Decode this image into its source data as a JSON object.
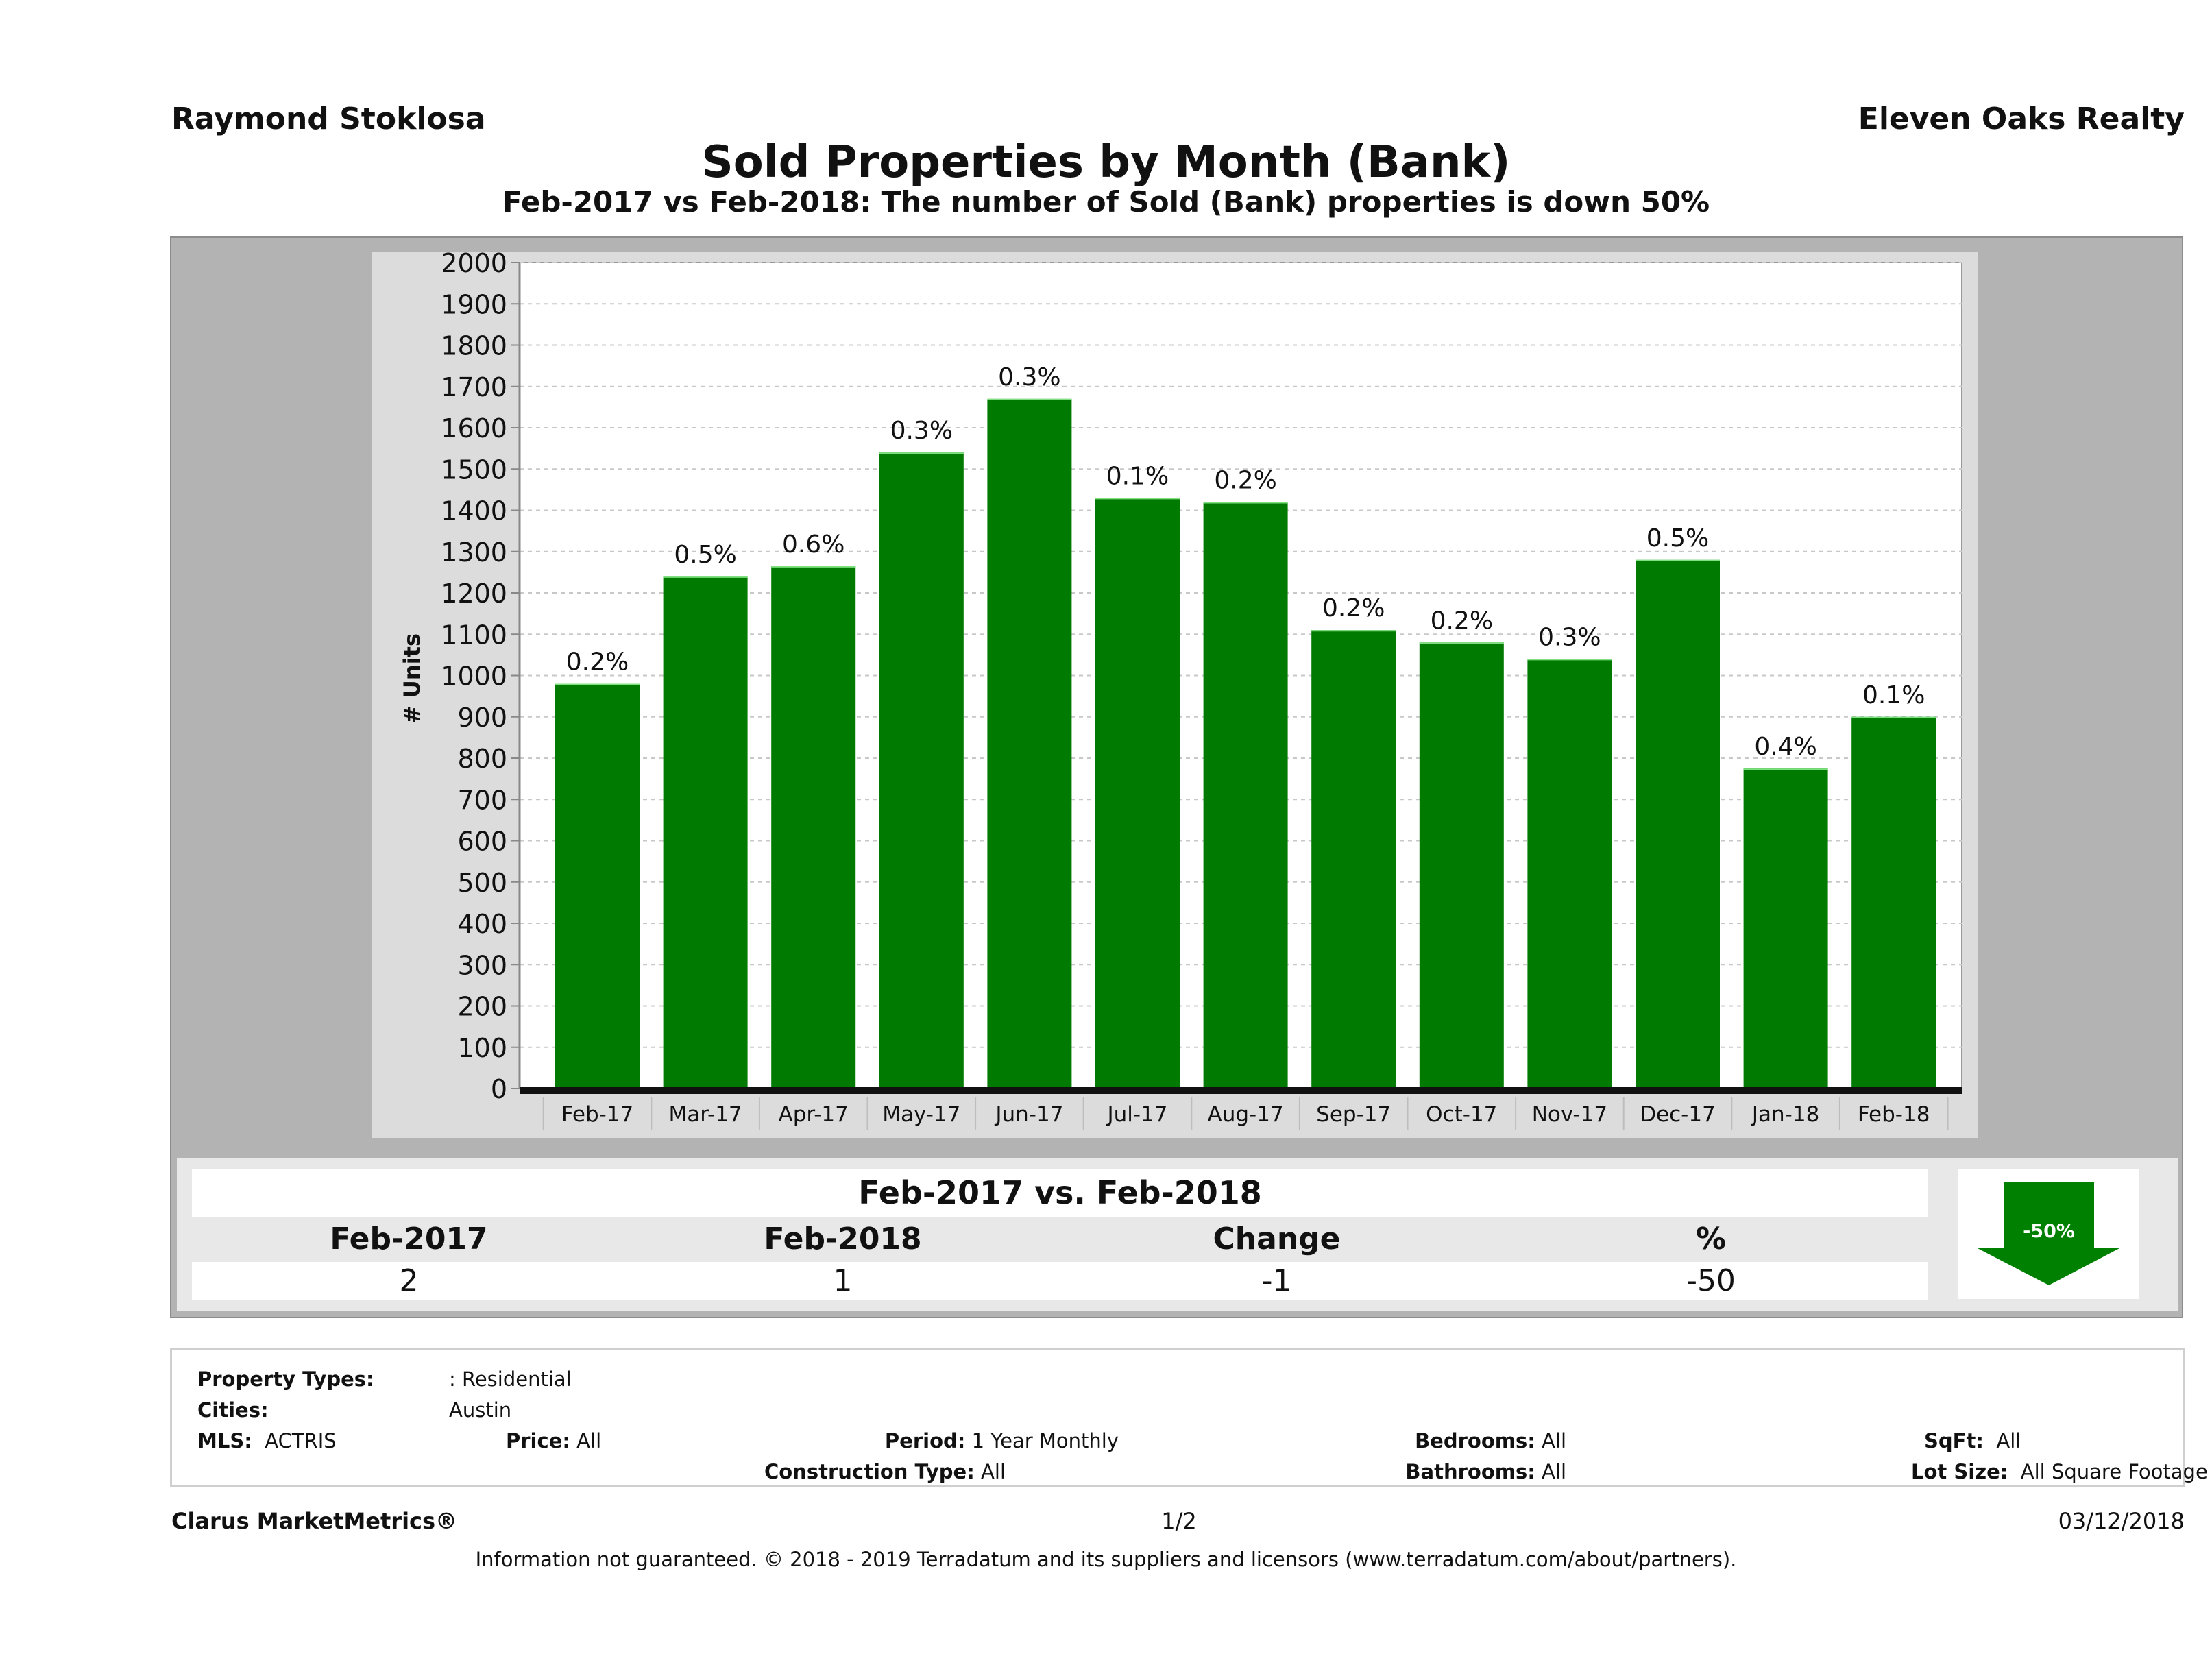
{
  "header": {
    "agent": "Raymond Stoklosa",
    "brokerage": "Eleven Oaks Realty",
    "title": "Sold Properties by Month (Bank)",
    "subtitle": "Feb-2017 vs Feb-2018: The number of Sold (Bank)  properties is down 50%"
  },
  "chart_data": {
    "type": "bar",
    "title": "Sold Properties by Month (Bank)",
    "xlabel": "",
    "ylabel": "# Units",
    "ylim": [
      0,
      2000
    ],
    "y_ticks": [
      0,
      100,
      200,
      300,
      400,
      500,
      600,
      700,
      800,
      900,
      1000,
      1100,
      1200,
      1300,
      1400,
      1500,
      1600,
      1700,
      1800,
      1900,
      2000
    ],
    "grid": true,
    "legend": "none",
    "categories": [
      "Feb-17",
      "Mar-17",
      "Apr-17",
      "May-17",
      "Jun-17",
      "Jul-17",
      "Aug-17",
      "Sep-17",
      "Oct-17",
      "Nov-17",
      "Dec-17",
      "Jan-18",
      "Feb-18"
    ],
    "values": [
      980,
      1240,
      1265,
      1540,
      1670,
      1430,
      1420,
      1110,
      1080,
      1040,
      1280,
      775,
      900
    ],
    "data_labels": [
      "0.2%",
      "0.5%",
      "0.6%",
      "0.3%",
      "0.3%",
      "0.1%",
      "0.2%",
      "0.2%",
      "0.2%",
      "0.3%",
      "0.5%",
      "0.4%",
      "0.1%"
    ],
    "bar_color": "#007a00"
  },
  "summary": {
    "title": "Feb-2017 vs. Feb-2018",
    "headers": [
      "Feb-2017",
      "Feb-2018",
      "Change",
      "%"
    ],
    "values": [
      "2",
      "1",
      "-1",
      "-50"
    ],
    "badge": "-50%",
    "badge_icon": "down-arrow-icon",
    "badge_color": "#008000"
  },
  "details": {
    "property_types_label": "Property Types:",
    "property_types_value": ": Residential",
    "cities_label": "Cities:",
    "cities_value": "Austin",
    "mls_label": "MLS:",
    "mls_value": "ACTRIS",
    "price_label": "Price:",
    "price_value": "All",
    "period_label": "Period:",
    "period_value": "1 Year Monthly",
    "construction_label": "Construction Type:",
    "construction_value": "All",
    "bedrooms_label": "Bedrooms:",
    "bedrooms_value": "All",
    "bathrooms_label": "Bathrooms:",
    "bathrooms_value": "All",
    "sqft_label": "SqFt:",
    "sqft_value": "All",
    "lot_label": "Lot Size:",
    "lot_value": "All Square Footage"
  },
  "footer": {
    "product": "Clarus MarketMetrics®",
    "page": "1/2",
    "date": "03/12/2018",
    "disclaimer": "Information not guaranteed. © 2018 - 2019 Terradatum and its suppliers and licensors (www.terradatum.com/about/partners)."
  }
}
